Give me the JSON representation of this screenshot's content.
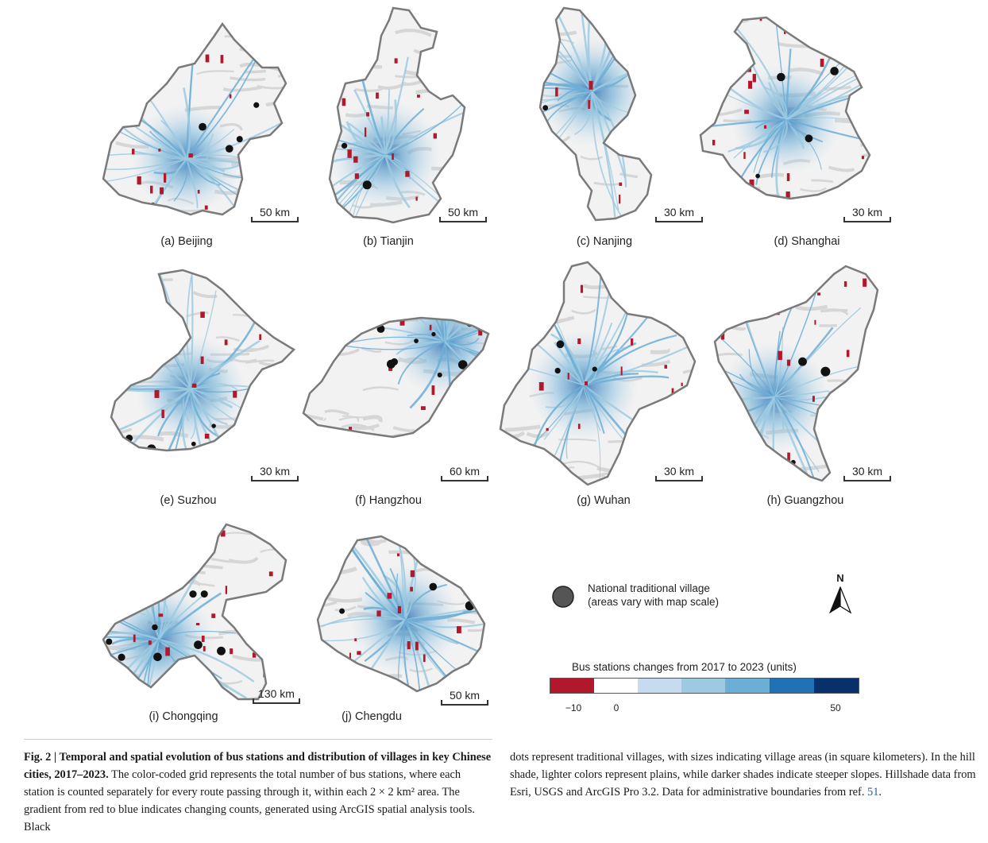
{
  "panels": [
    {
      "id": "a",
      "caption": "(a) Beijing",
      "scale": "50 km"
    },
    {
      "id": "b",
      "caption": "(b) Tianjin",
      "scale": "50 km"
    },
    {
      "id": "c",
      "caption": "(c) Nanjing",
      "scale": "30 km"
    },
    {
      "id": "d",
      "caption": "(d) Shanghai",
      "scale": "30 km"
    },
    {
      "id": "e",
      "caption": "(e) Suzhou",
      "scale": "30 km"
    },
    {
      "id": "f",
      "caption": "(f) Hangzhou",
      "scale": "60 km"
    },
    {
      "id": "g",
      "caption": "(g) Wuhan",
      "scale": "30 km"
    },
    {
      "id": "h",
      "caption": "(h) Guangzhou",
      "scale": "30 km"
    },
    {
      "id": "i",
      "caption": "(i) Chongqing",
      "scale": "130 km"
    },
    {
      "id": "j",
      "caption": "(j) Chengdu",
      "scale": "50 km"
    }
  ],
  "legend": {
    "village_label_1": "National traditional village",
    "village_label_2": "(areas vary with map scale)",
    "north_label": "N",
    "colorbar_title": "Bus stations changes from 2017 to 2023 (units)",
    "colorbar_colors": [
      "#b2182b",
      "#ffffff",
      "#c6dbef",
      "#9ecae1",
      "#6baed6",
      "#2171b5",
      "#08306b"
    ],
    "tick_minus10": "−10",
    "tick_0": "0",
    "tick_50": "50"
  },
  "caption": {
    "bold": "Fig. 2 | Temporal and spatial evolution of bus stations and distribution of villages in key Chinese cities, 2017–2023.",
    "text_left": " The color-coded grid represents the total number of bus stations, where each station is counted separately for every route passing through it, within each 2 × 2 km² area. The gradient from red to blue indicates changing counts, generated using ArcGIS spatial analysis tools. Black",
    "text_right": "dots represent traditional villages, with sizes indicating village areas (in square kilometers). In the hill shade, lighter colors represent plains, while darker shades indicate steeper slopes. Hillshade data from Esri, USGS and ArcGIS Pro 3.2. Data for administrative boundaries from ref.",
    "ref": "51",
    "end": "."
  }
}
